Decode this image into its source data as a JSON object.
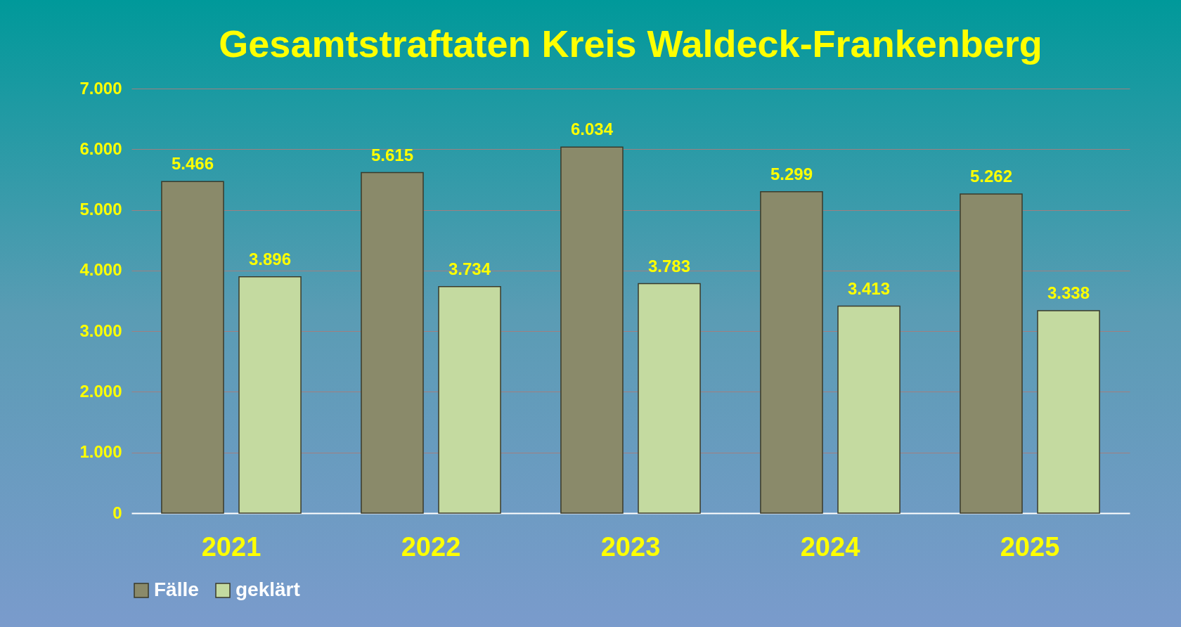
{
  "chart_data": {
    "type": "bar",
    "title": "Gesamtstraftaten Kreis Waldeck-Frankenberg",
    "categories": [
      "2021",
      "2022",
      "2023",
      "2024",
      "2025"
    ],
    "series": [
      {
        "name": "Fälle",
        "color": "#8a8a6a",
        "values": [
          5466,
          5615,
          6034,
          5299,
          5262
        ],
        "value_labels": [
          "5.466",
          "5.615",
          "6.034",
          "5.299",
          "5.262"
        ]
      },
      {
        "name": "geklärt",
        "color": "#c4daa0",
        "values": [
          3896,
          3734,
          3783,
          3413,
          3338
        ],
        "value_labels": [
          "3.896",
          "3.734",
          "3.783",
          "3.413",
          "3.338"
        ]
      }
    ],
    "ylim": [
      0,
      7000
    ],
    "yticks": [
      {
        "value": 0,
        "label": "0"
      },
      {
        "value": 1000,
        "label": "1.000"
      },
      {
        "value": 2000,
        "label": "2.000"
      },
      {
        "value": 3000,
        "label": "3.000"
      },
      {
        "value": 4000,
        "label": "4.000"
      },
      {
        "value": 5000,
        "label": "5.000"
      },
      {
        "value": 6000,
        "label": "6.000"
      },
      {
        "value": 7000,
        "label": "7.000"
      }
    ],
    "grid": "y",
    "legend": "bottom"
  }
}
